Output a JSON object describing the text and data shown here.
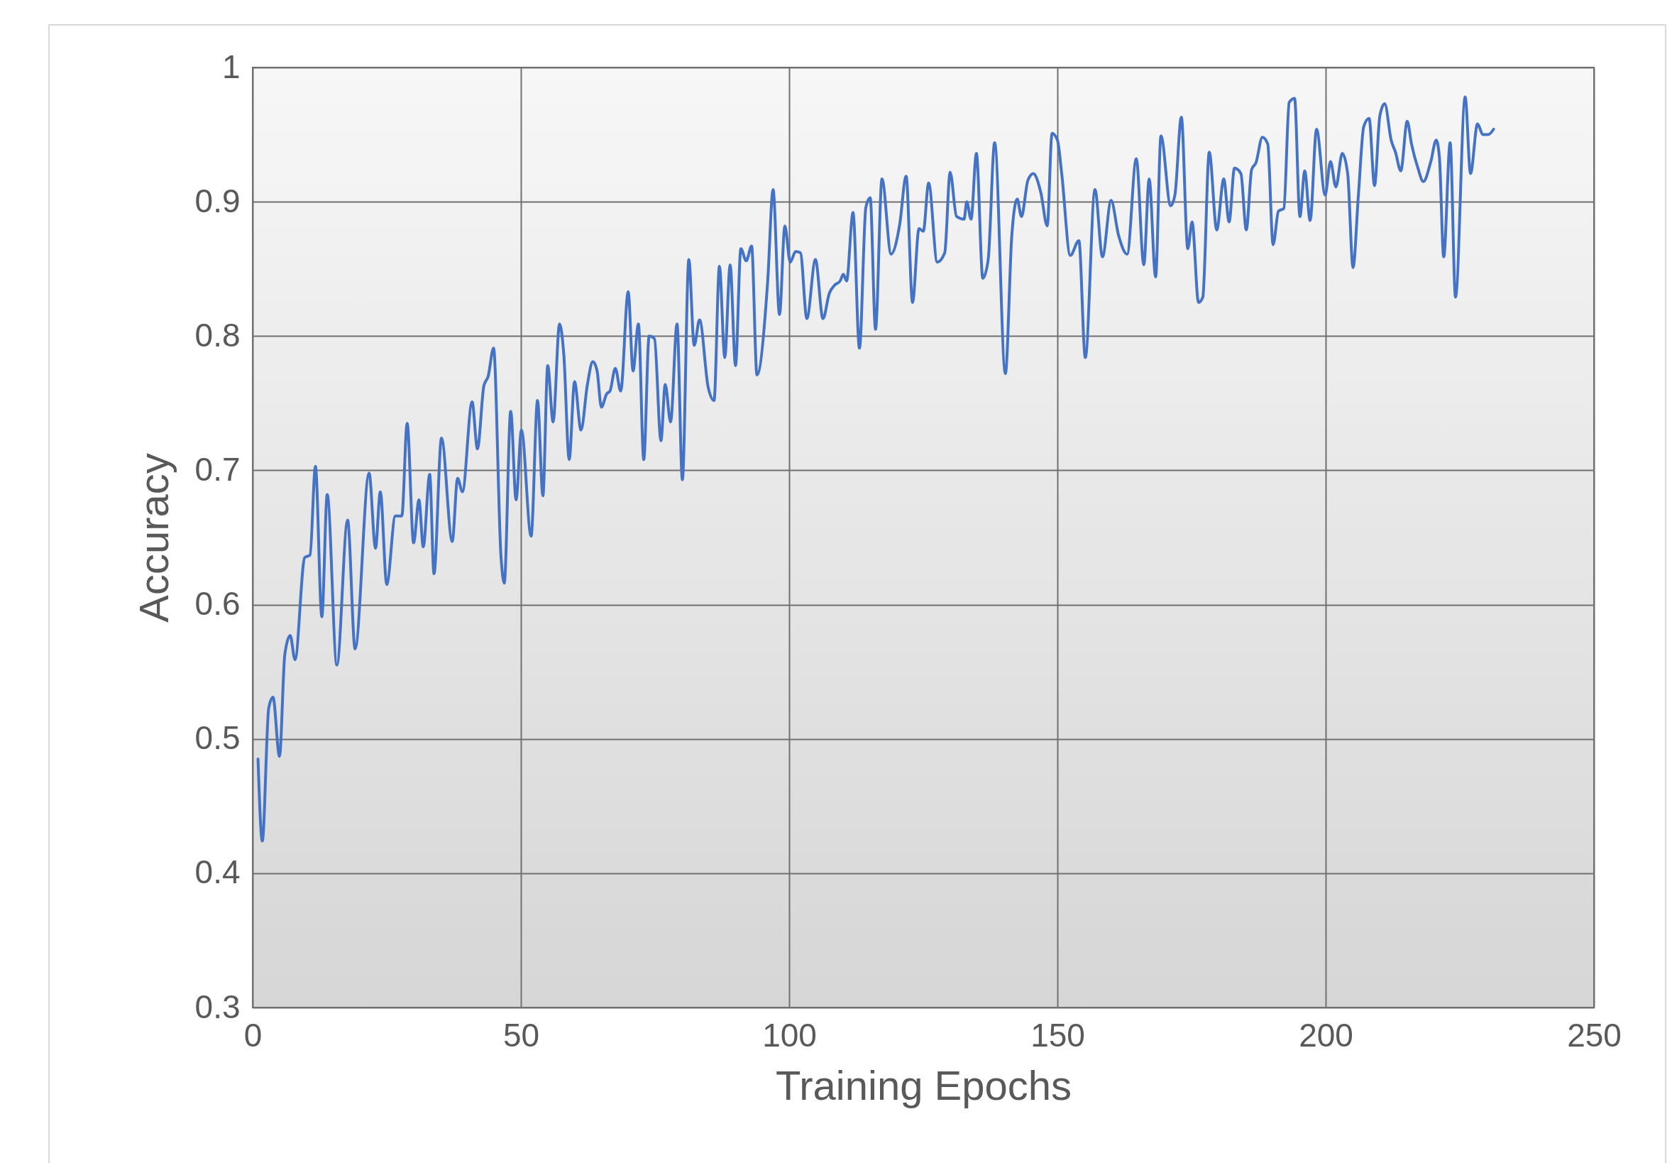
{
  "chart_data": {
    "type": "line",
    "xlabel": "Training Epochs",
    "ylabel": "Accuracy",
    "x": [
      1.0,
      1.8,
      3.0,
      3.8,
      5.0,
      6.0,
      7.0,
      7.9,
      9.7,
      10.7,
      11.7,
      12.9,
      13.9,
      15.7,
      17.7,
      19.1,
      21.7,
      22.9,
      23.8,
      25.0,
      26.6,
      27.8,
      28.8,
      30.0,
      31.0,
      31.8,
      33.0,
      33.8,
      35.2,
      37.2,
      38.2,
      39.1,
      40.9,
      41.9,
      43.1,
      43.9,
      44.9,
      46.3,
      46.9,
      48.1,
      49.1,
      50.1,
      51.9,
      53.1,
      54.1,
      55.0,
      56.0,
      57.2,
      58.0,
      59.0,
      60.0,
      61.2,
      62.4,
      63.4,
      64.2,
      65.0,
      66.0,
      66.6,
      67.6,
      68.6,
      70.0,
      70.9,
      71.9,
      72.9,
      73.9,
      74.9,
      76.1,
      76.9,
      77.9,
      79.1,
      80.1,
      81.3,
      82.3,
      83.3,
      84.9,
      86.0,
      87.0,
      88.0,
      89.0,
      90.0,
      91.0,
      92.0,
      93.0,
      94.0,
      96.0,
      97.0,
      98.2,
      99.2,
      100.2,
      101.2,
      102.1,
      103.3,
      104.9,
      106.3,
      107.5,
      108.5,
      109.5,
      110.1,
      110.7,
      111.9,
      113.1,
      114.3,
      115.1,
      116.1,
      117.3,
      119.0,
      120.6,
      121.8,
      123.0,
      124.2,
      125.0,
      126.0,
      127.6,
      129.0,
      130.0,
      131.2,
      132.6,
      133.1,
      133.9,
      134.9,
      136.1,
      137.1,
      138.3,
      140.3,
      141.5,
      142.5,
      143.3,
      144.5,
      145.5,
      146.9,
      148.1,
      149.0,
      150.0,
      150.8,
      152.4,
      154.0,
      155.2,
      157.0,
      158.4,
      160.0,
      161.4,
      163.0,
      164.7,
      166.1,
      167.1,
      168.3,
      169.3,
      171.1,
      171.9,
      173.1,
      174.3,
      175.1,
      176.3,
      177.1,
      178.3,
      179.7,
      181.0,
      182.0,
      183.0,
      184.2,
      185.2,
      186.2,
      187.0,
      188.2,
      189.2,
      190.2,
      191.2,
      192.2,
      193.2,
      194.2,
      195.2,
      196.1,
      197.1,
      198.3,
      199.9,
      200.9,
      201.9,
      203.1,
      204.1,
      205.1,
      206.1,
      207.1,
      208.1,
      209.1,
      210.1,
      211.0,
      212.2,
      213.0,
      214.0,
      215.2,
      216.0,
      217.2,
      218.2,
      219.6,
      220.6,
      221.2,
      222.0,
      223.2,
      224.2,
      226.0,
      227.0,
      228.3,
      229.3,
      230.3,
      231.3
    ],
    "series": [
      {
        "color": "#4472c4",
        "values": [
          0.485,
          0.424,
          0.523,
          0.531,
          0.487,
          0.563,
          0.577,
          0.559,
          0.635,
          0.637,
          0.703,
          0.591,
          0.682,
          0.555,
          0.663,
          0.567,
          0.698,
          0.642,
          0.684,
          0.615,
          0.666,
          0.666,
          0.735,
          0.646,
          0.678,
          0.643,
          0.697,
          0.623,
          0.724,
          0.647,
          0.694,
          0.684,
          0.751,
          0.716,
          0.763,
          0.77,
          0.791,
          0.635,
          0.616,
          0.744,
          0.678,
          0.73,
          0.651,
          0.752,
          0.681,
          0.778,
          0.736,
          0.809,
          0.786,
          0.708,
          0.766,
          0.73,
          0.764,
          0.781,
          0.774,
          0.747,
          0.757,
          0.759,
          0.776,
          0.759,
          0.833,
          0.774,
          0.809,
          0.708,
          0.8,
          0.798,
          0.722,
          0.764,
          0.736,
          0.809,
          0.693,
          0.857,
          0.793,
          0.812,
          0.762,
          0.752,
          0.852,
          0.784,
          0.853,
          0.778,
          0.865,
          0.856,
          0.867,
          0.771,
          0.841,
          0.909,
          0.816,
          0.882,
          0.855,
          0.863,
          0.862,
          0.813,
          0.857,
          0.813,
          0.832,
          0.838,
          0.841,
          0.846,
          0.841,
          0.892,
          0.791,
          0.896,
          0.903,
          0.805,
          0.917,
          0.861,
          0.883,
          0.919,
          0.825,
          0.88,
          0.878,
          0.914,
          0.855,
          0.862,
          0.922,
          0.889,
          0.887,
          0.9,
          0.887,
          0.936,
          0.843,
          0.857,
          0.944,
          0.772,
          0.875,
          0.902,
          0.889,
          0.916,
          0.921,
          0.907,
          0.882,
          0.951,
          0.946,
          0.921,
          0.86,
          0.871,
          0.784,
          0.909,
          0.859,
          0.901,
          0.875,
          0.861,
          0.932,
          0.853,
          0.917,
          0.844,
          0.949,
          0.897,
          0.905,
          0.963,
          0.865,
          0.885,
          0.825,
          0.829,
          0.937,
          0.879,
          0.917,
          0.885,
          0.925,
          0.921,
          0.879,
          0.924,
          0.929,
          0.948,
          0.943,
          0.868,
          0.893,
          0.895,
          0.974,
          0.977,
          0.889,
          0.923,
          0.886,
          0.954,
          0.905,
          0.93,
          0.911,
          0.936,
          0.921,
          0.851,
          0.905,
          0.956,
          0.962,
          0.912,
          0.964,
          0.973,
          0.946,
          0.937,
          0.923,
          0.96,
          0.943,
          0.925,
          0.915,
          0.93,
          0.946,
          0.933,
          0.859,
          0.944,
          0.829,
          0.978,
          0.921,
          0.958,
          0.95,
          0.95,
          0.954
        ]
      }
    ],
    "xlim": [
      0,
      250
    ],
    "xticks": [
      0,
      50,
      100,
      150,
      200,
      250
    ],
    "ylim": [
      0.3,
      1
    ],
    "yticks": [
      0.3,
      0.4,
      0.5,
      0.6,
      0.7,
      0.8,
      0.9,
      1
    ],
    "grid": true,
    "marker": "none",
    "line_style": "solid"
  }
}
